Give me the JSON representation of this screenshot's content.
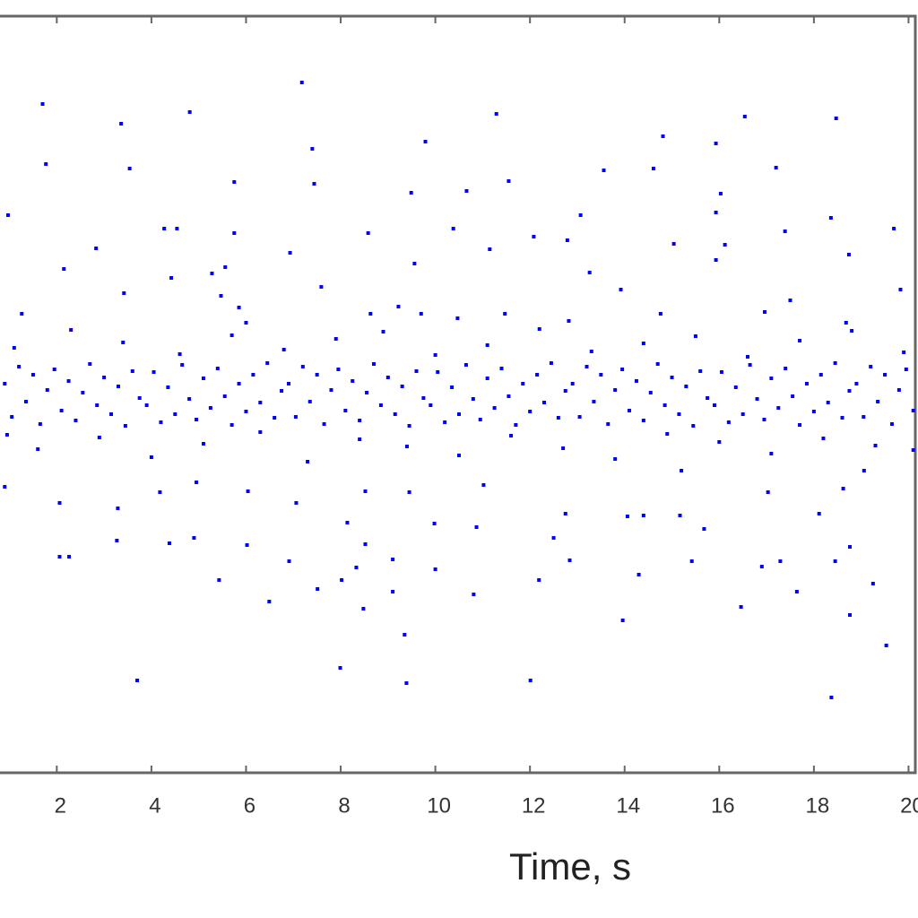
{
  "chart_data": {
    "type": "scatter",
    "x_label": "Time, s",
    "color": "#0000ff",
    "xlim": [
      0.8,
      20.2
    ],
    "ylim": [
      -4.22,
      4.22
    ],
    "xticks": [
      2,
      4,
      6,
      8,
      10,
      12,
      14,
      16,
      18,
      20
    ],
    "x": [
      1.7,
      3.36,
      4.81,
      7.18,
      11.29,
      16.54,
      18.47,
      1.77,
      3.54,
      7.4,
      9.79,
      5.75,
      7.44,
      9.49,
      10.66,
      11.55,
      13.56,
      14.81,
      14.61,
      15.93,
      17.2,
      0.97,
      4.27,
      4.54,
      5.75,
      8.58,
      10.38,
      11.15,
      12.08,
      12.79,
      13.07,
      15.04,
      15.93,
      16.03,
      17.39,
      18.36,
      19.69,
      2.15,
      2.83,
      4.42,
      5.28,
      5.56,
      6.93,
      9.56,
      13.26,
      13.92,
      15.93,
      16.12,
      18.74,
      19.83,
      1.26,
      3.42,
      5.47,
      5.85,
      7.59,
      8.63,
      9.22,
      10.47,
      11.47,
      12.82,
      14.76,
      16.96,
      17.5,
      18.68,
      0.9,
      2.06,
      3.29,
      4.18,
      4.95,
      6.04,
      7.06,
      8.52,
      9.45,
      11.02,
      12.75,
      14.06,
      14.4,
      15.17,
      17.03,
      18.62,
      19.06,
      3.27,
      4.38,
      4.9,
      6.02,
      8.14,
      8.52,
      9.98,
      10.87,
      12.5,
      15.68,
      18.11,
      2.06,
      2.26,
      5.43,
      6.91,
      7.51,
      8.02,
      8.33,
      9.1,
      9.1,
      10.0,
      10.81,
      12.19,
      12.84,
      14.3,
      15.42,
      16.46,
      16.9,
      17.29,
      17.64,
      18.45,
      18.76,
      19.25,
      6.49,
      8.48,
      13.96,
      18.76,
      19.53,
      3.7,
      7.99,
      9.39,
      9.35,
      12.01,
      18.37,
      0.9,
      1.05,
      1.2,
      1.35,
      1.5,
      1.65,
      1.8,
      1.95,
      2.1,
      2.25,
      2.4,
      2.55,
      2.7,
      2.85,
      3.0,
      3.15,
      3.3,
      3.45,
      3.6,
      3.75,
      3.9,
      4.05,
      4.2,
      4.35,
      4.5,
      4.65,
      4.8,
      4.95,
      5.1,
      5.25,
      5.4,
      5.55,
      5.7,
      5.85,
      6.0,
      6.15,
      6.3,
      6.45,
      6.6,
      6.75,
      6.9,
      7.05,
      7.2,
      7.35,
      7.5,
      7.65,
      7.8,
      7.95,
      8.1,
      8.25,
      8.4,
      8.55,
      8.7,
      8.85,
      9.0,
      9.15,
      9.3,
      9.45,
      9.6,
      9.75,
      9.9,
      10.05,
      10.2,
      10.35,
      10.5,
      10.65,
      10.8,
      10.95,
      11.1,
      11.25,
      11.4,
      11.55,
      11.7,
      11.85,
      12.0,
      12.15,
      12.3,
      12.45,
      12.6,
      12.75,
      12.9,
      13.05,
      13.2,
      13.35,
      13.5,
      13.65,
      13.8,
      13.95,
      14.1,
      14.25,
      14.4,
      14.55,
      14.7,
      14.85,
      15.0,
      15.15,
      15.3,
      15.45,
      15.6,
      15.75,
      15.9,
      16.05,
      16.2,
      16.35,
      16.5,
      16.65,
      16.8,
      16.95,
      17.1,
      17.25,
      17.4,
      17.55,
      17.7,
      17.85,
      18.0,
      18.15,
      18.3,
      18.45,
      18.6,
      18.75,
      18.9,
      19.05,
      19.2,
      19.35,
      19.5,
      19.65,
      19.8,
      19.95,
      20.1,
      1.1,
      1.6,
      2.3,
      2.9,
      3.4,
      4.0,
      4.6,
      5.1,
      5.7,
      6.3,
      6.8,
      7.3,
      7.9,
      8.4,
      8.9,
      9.4,
      10.0,
      10.5,
      11.1,
      11.6,
      12.2,
      12.7,
      13.3,
      13.8,
      14.4,
      14.9,
      15.5,
      16.0,
      16.6,
      17.1,
      17.7,
      18.2,
      18.8,
      19.3,
      19.9,
      0.95,
      20.1,
      9.7,
      15.2,
      6.0
    ],
    "values": [
      3.24,
      3.02,
      3.15,
      3.48,
      3.13,
      3.1,
      3.08,
      2.57,
      2.52,
      2.74,
      2.82,
      2.37,
      2.35,
      2.25,
      2.27,
      2.38,
      2.5,
      2.88,
      2.52,
      2.8,
      2.53,
      2.0,
      1.85,
      1.85,
      1.8,
      1.8,
      1.85,
      1.62,
      1.76,
      1.72,
      2.0,
      1.68,
      2.03,
      2.24,
      1.82,
      1.97,
      1.85,
      1.4,
      1.63,
      1.3,
      1.35,
      1.42,
      1.58,
      1.46,
      1.36,
      1.17,
      1.5,
      1.67,
      1.56,
      1.17,
      0.9,
      1.13,
      1.1,
      0.97,
      1.2,
      0.9,
      0.98,
      0.85,
      0.9,
      0.82,
      0.9,
      0.92,
      1.05,
      0.8,
      -1.03,
      -1.21,
      -1.27,
      -1.09,
      -0.98,
      -1.08,
      -1.21,
      -1.08,
      -1.09,
      -1.01,
      -1.33,
      -1.36,
      -1.35,
      -1.35,
      -1.09,
      -1.05,
      -0.85,
      -1.63,
      -1.66,
      -1.6,
      -1.68,
      -1.43,
      -1.67,
      -1.44,
      -1.48,
      -1.6,
      -1.5,
      -1.33,
      -1.81,
      -1.81,
      -2.07,
      -1.86,
      -2.17,
      -2.07,
      -1.93,
      -1.84,
      -2.2,
      -1.95,
      -2.23,
      -2.07,
      -1.85,
      -2.01,
      -1.86,
      -2.37,
      -1.92,
      -1.86,
      -2.2,
      -1.86,
      -1.7,
      -2.11,
      -2.31,
      -2.39,
      -2.52,
      -2.46,
      -2.8,
      -3.19,
      -3.05,
      -3.22,
      -2.68,
      -3.19,
      -3.38,
      0.12,
      -0.25,
      0.31,
      -0.08,
      0.22,
      -0.33,
      0.05,
      0.28,
      -0.18,
      0.15,
      -0.29,
      0.02,
      0.34,
      -0.12,
      0.19,
      -0.22,
      0.09,
      -0.35,
      0.26,
      -0.04,
      -0.12,
      0.25,
      -0.31,
      0.08,
      -0.22,
      0.33,
      -0.05,
      -0.28,
      0.18,
      -0.15,
      0.29,
      -0.02,
      -0.34,
      0.12,
      -0.19,
      0.22,
      -0.09,
      0.35,
      -0.26,
      0.04,
      0.12,
      -0.25,
      0.31,
      -0.08,
      0.22,
      -0.33,
      0.05,
      0.28,
      -0.18,
      0.15,
      -0.29,
      0.02,
      0.34,
      -0.12,
      0.19,
      -0.22,
      0.09,
      -0.35,
      0.26,
      -0.04,
      -0.12,
      0.25,
      -0.31,
      0.08,
      -0.22,
      0.33,
      -0.05,
      -0.28,
      0.18,
      -0.15,
      0.29,
      -0.02,
      -0.34,
      0.12,
      -0.19,
      0.22,
      -0.09,
      0.35,
      -0.26,
      0.04,
      0.12,
      -0.25,
      0.31,
      -0.08,
      0.22,
      -0.33,
      0.05,
      0.28,
      -0.18,
      0.15,
      -0.29,
      0.02,
      0.34,
      -0.12,
      0.19,
      -0.22,
      0.09,
      -0.35,
      0.26,
      -0.04,
      -0.12,
      0.25,
      -0.31,
      0.08,
      -0.22,
      0.33,
      -0.05,
      -0.28,
      0.18,
      -0.15,
      0.29,
      -0.02,
      -0.34,
      0.12,
      -0.19,
      0.22,
      -0.09,
      0.35,
      -0.26,
      0.04,
      0.12,
      -0.25,
      0.31,
      -0.08,
      0.22,
      -0.33,
      0.05,
      0.28,
      -0.18,
      0.52,
      -0.61,
      0.72,
      -0.48,
      0.58,
      -0.7,
      0.45,
      -0.55,
      0.66,
      -0.42,
      0.5,
      -0.75,
      0.62,
      -0.5,
      0.7,
      -0.58,
      0.44,
      -0.68,
      0.55,
      -0.46,
      0.73,
      -0.6,
      0.48,
      -0.72,
      0.57,
      -0.44,
      0.65,
      -0.53,
      0.42,
      -0.66,
      0.6,
      -0.49,
      0.71,
      -0.57,
      0.47,
      -0.45,
      -0.62,
      0.9,
      -0.85,
      0.8
    ]
  }
}
